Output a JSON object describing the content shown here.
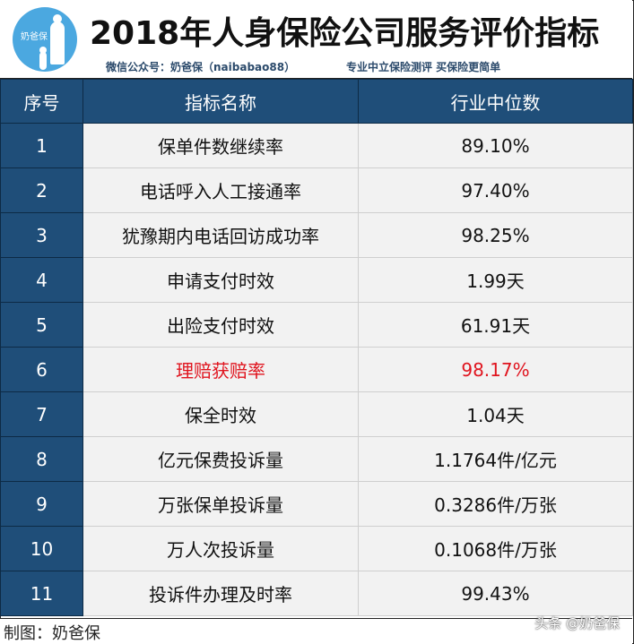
{
  "header": {
    "logo_text": "奶爸保",
    "title": "2018年人身保险公司服务评价指标",
    "subtitle_left": "微信公众号：奶爸保（naibabao88）",
    "subtitle_right": "专业中立保险测评 买保险更简单"
  },
  "table": {
    "columns": [
      "序号",
      "指标名称",
      "行业中位数"
    ],
    "rows": [
      {
        "no": "1",
        "name": "保单件数继续率",
        "value": "89.10%"
      },
      {
        "no": "2",
        "name": "电话呼入人工接通率",
        "value": "97.40%"
      },
      {
        "no": "3",
        "name": "犹豫期内电话回访成功率",
        "value": "98.25%"
      },
      {
        "no": "4",
        "name": "申请支付时效",
        "value": "1.99天"
      },
      {
        "no": "5",
        "name": "出险支付时效",
        "value": "61.91天"
      },
      {
        "no": "6",
        "name": "理赔获赔率",
        "value": "98.17%",
        "highlight": true
      },
      {
        "no": "7",
        "name": "保全时效",
        "value": "1.04天"
      },
      {
        "no": "8",
        "name": "亿元保费投诉量",
        "value": "1.1764件/亿元"
      },
      {
        "no": "9",
        "name": "万张保单投诉量",
        "value": "0.3286件/万张"
      },
      {
        "no": "10",
        "name": "万人次投诉量",
        "value": "0.1068件/万张"
      },
      {
        "no": "11",
        "name": "投诉件办理及时率",
        "value": "99.43%"
      }
    ]
  },
  "footer": {
    "credit": "制图：奶爸保",
    "watermark": "头条 @奶爸保"
  },
  "colors": {
    "header_blue": "#1f4e79",
    "cell_bg": "#f2f2f2",
    "highlight_red": "#e0141e",
    "logo_blue": "#4ba8e0"
  }
}
